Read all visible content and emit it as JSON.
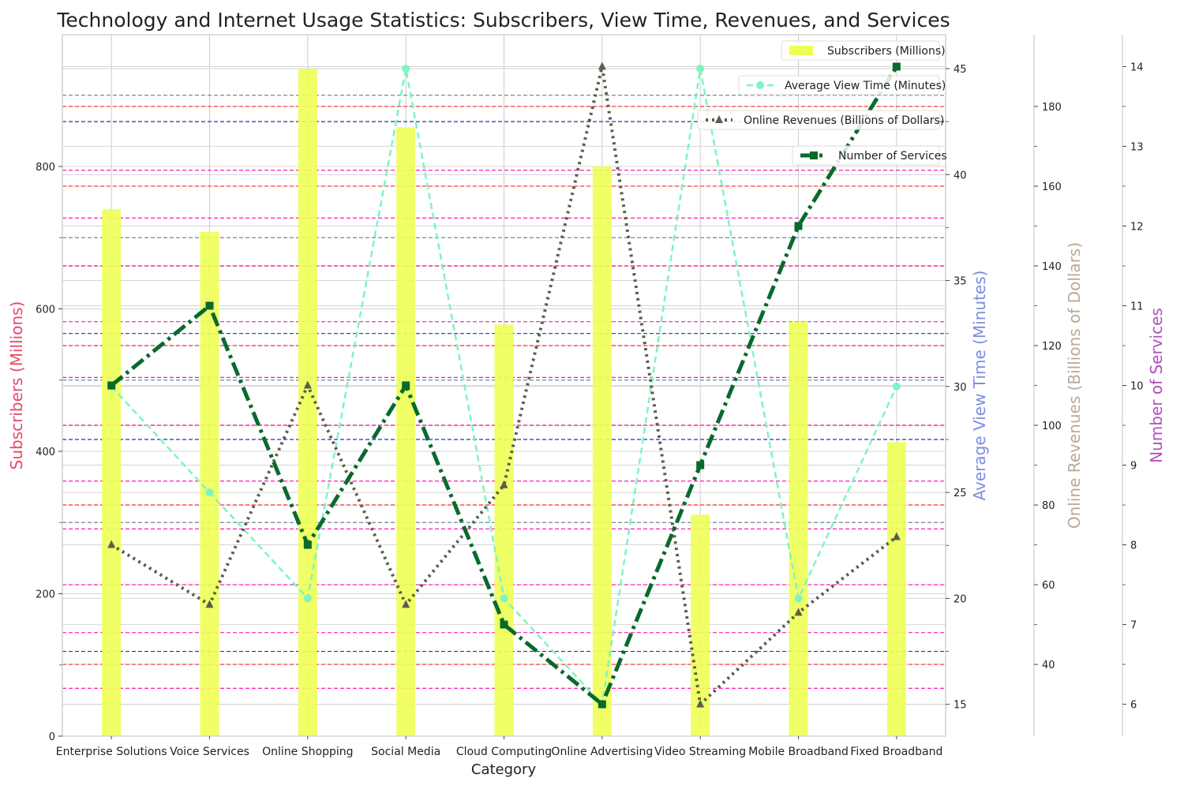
{
  "chart_data": {
    "type": "bar",
    "title": "Technology and Internet Usage Statistics: Subscribers, View Time, Revenues, and Services",
    "xlabel": "Category",
    "categories": [
      "Enterprise Solutions",
      "Voice Services",
      "Online Shopping",
      "Social Media",
      "Cloud Computing",
      "Online Advertising",
      "Video Streaming",
      "Mobile Broadband",
      "Fixed Broadband"
    ],
    "series": [
      {
        "name": "Subscribers (Millions)",
        "type": "bar",
        "axis": "Subscribers (Millions)",
        "color": "#eeff55",
        "values": [
          740,
          708,
          937,
          855,
          578,
          800,
          311,
          582,
          413
        ]
      },
      {
        "name": "Average View Time (Minutes)",
        "type": "line",
        "axis": "Average View Time (Minutes)",
        "color": "#7df5c1",
        "values": [
          30,
          25,
          20,
          45,
          20,
          15,
          45,
          20,
          30
        ]
      },
      {
        "name": "Online Revenues (Billions of Dollars)",
        "type": "line",
        "axis": "Online Revenues (Billions of Dollars)",
        "color": "#595f4a",
        "values": [
          70,
          55,
          110,
          55,
          85,
          190,
          30,
          53,
          72
        ]
      },
      {
        "name": "Number of Services",
        "type": "line",
        "axis": "Number of Services",
        "color": "#086a2c",
        "values": [
          10,
          11,
          8,
          10,
          7,
          6,
          9,
          12,
          14
        ]
      }
    ],
    "axes": {
      "left": {
        "label": "Subscribers (Millions)",
        "label_color": "#e8476a",
        "ylim": [
          0,
          985
        ],
        "ticks": [
          0,
          200,
          400,
          600,
          800
        ],
        "tick_labels": [
          "0",
          "200",
          "400",
          "600",
          "800"
        ]
      },
      "right1": {
        "label": "Average View Time (Minutes)",
        "label_color": "#7b8ee0",
        "ylim": [
          13.5,
          46.6
        ],
        "ticks": [
          15,
          20,
          25,
          30,
          35,
          40,
          45
        ],
        "tick_labels": [
          "15",
          "20",
          "25",
          "30",
          "35",
          "40",
          "45"
        ]
      },
      "right2": {
        "label": "Online Revenues (Billions of Dollars)",
        "label_color": "#b8aa9b",
        "ylim": [
          22,
          198
        ],
        "ticks": [
          40,
          60,
          80,
          100,
          120,
          140,
          160,
          180
        ],
        "tick_labels": [
          "40",
          "60",
          "80",
          "100",
          "120",
          "140",
          "160",
          "180"
        ]
      },
      "right3": {
        "label": "Number of Services",
        "label_color": "#b44fbd",
        "ylim": [
          5.6,
          14.4
        ],
        "ticks": [
          6,
          7,
          8,
          9,
          10,
          11,
          12,
          13,
          14
        ],
        "tick_labels": [
          "6",
          "7",
          "8",
          "9",
          "10",
          "11",
          "12",
          "13",
          "14"
        ]
      }
    },
    "reference_lines": [
      {
        "axis": "left",
        "color": "#6d86a8",
        "values": [
          300,
          500,
          700,
          900
        ]
      },
      {
        "axis": "right1",
        "color": "#2233aa",
        "values": [
          17.5,
          27.5,
          32.5,
          42.5
        ]
      },
      {
        "axis": "right2",
        "color": "#ff2a2a",
        "values": [
          40,
          60,
          80,
          100,
          120,
          140,
          160,
          180
        ]
      },
      {
        "axis": "right3",
        "color": "#ff1ab3",
        "values": [
          6.2,
          6.9,
          7.5,
          8.2,
          8.8,
          9.5,
          10.1,
          10.8,
          11.5,
          12.1,
          12.7
        ]
      }
    ],
    "grid": true,
    "legend_position": "top-right"
  }
}
